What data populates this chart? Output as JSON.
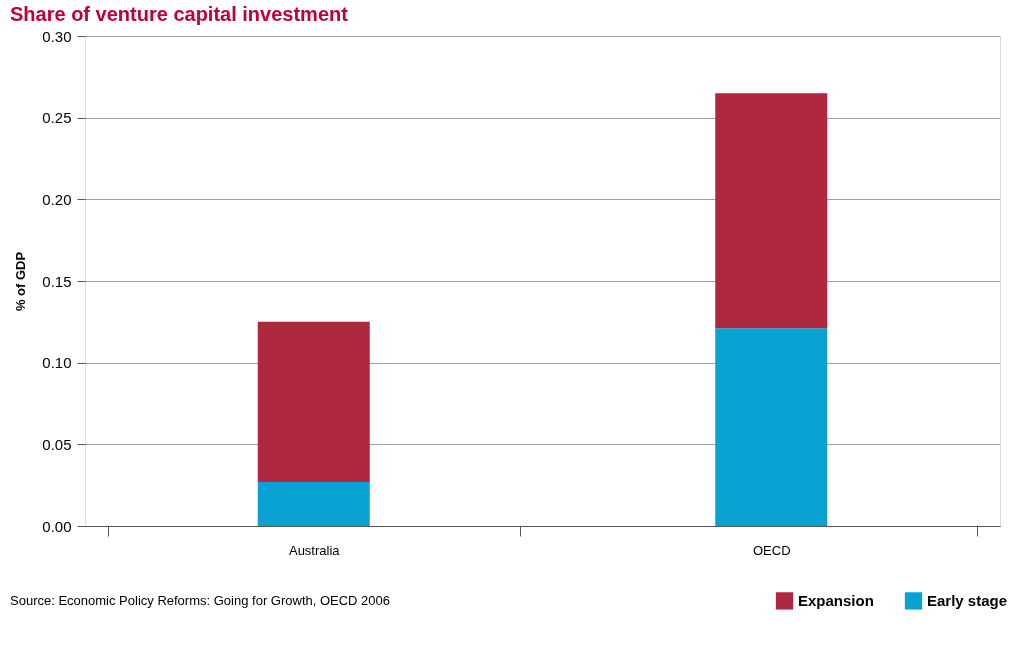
{
  "chart_data": {
    "type": "bar",
    "title": "Share of venture capital investment",
    "ylabel": "% of GDP",
    "categories": [
      "Australia",
      "OECD"
    ],
    "stacked": true,
    "series": [
      {
        "name": "Early stage",
        "color": "#0aa2d2",
        "values": [
          0.027,
          0.121
        ]
      },
      {
        "name": "Expansion",
        "color": "#b0283f",
        "values": [
          0.098,
          0.144
        ]
      }
    ],
    "ylim": [
      0,
      0.3
    ],
    "yticks": [
      {
        "value": 0,
        "label": "0.00"
      },
      {
        "value": 0.05,
        "label": "0.05"
      },
      {
        "value": 0.1,
        "label": "0.10"
      },
      {
        "value": 0.15,
        "label": "0.15"
      },
      {
        "value": 0.2,
        "label": "0.20"
      },
      {
        "value": 0.25,
        "label": "0.25"
      },
      {
        "value": 0.3,
        "label": "0.30"
      }
    ],
    "grid": "y",
    "legend": "bottom right",
    "annotations": [
      "Source: Economic Policy Reforms: Going for Growth, OECD 2006"
    ]
  }
}
